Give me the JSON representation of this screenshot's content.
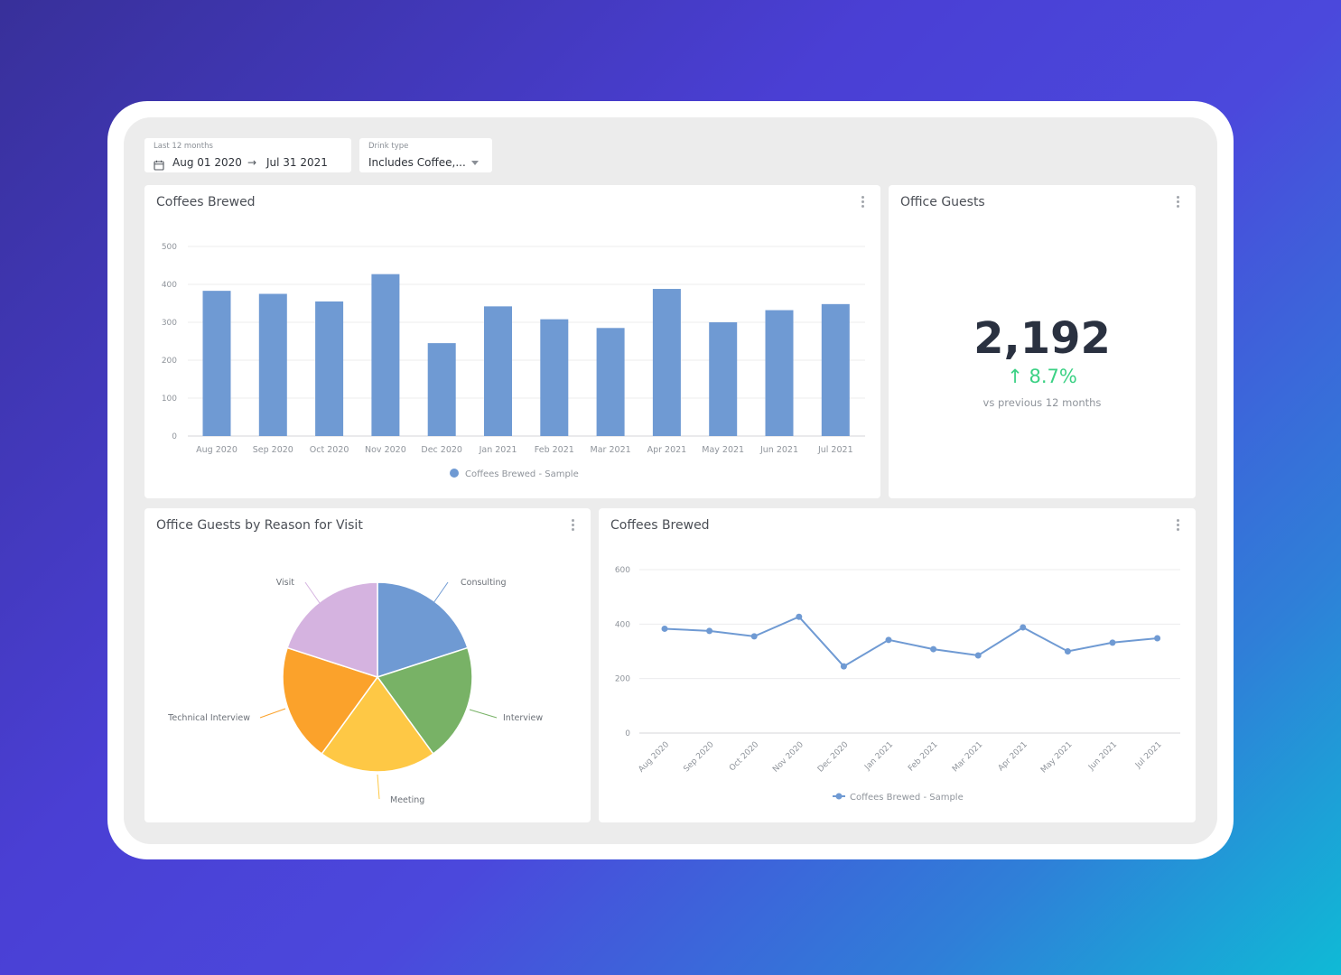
{
  "filters": {
    "date_range": {
      "label": "Last 12 months",
      "start": "Aug 01 2020",
      "arrow": "→",
      "end": "Jul 31 2021",
      "icon": "calendar-icon"
    },
    "drink_type": {
      "label": "Drink type",
      "value": "Includes Coffee,...",
      "icon": "caret-down-icon"
    }
  },
  "panels": {
    "bar": {
      "title": "Coffees Brewed",
      "menu_icon": "more-vertical-icon"
    },
    "kpi": {
      "title": "Office Guests",
      "value": "2,192",
      "change": "↑ 8.7%",
      "change_color": "#3bd184",
      "caption": "vs previous 12 months",
      "menu_icon": "more-vertical-icon"
    },
    "pie": {
      "title": "Office Guests by Reason for Visit",
      "menu_icon": "more-vertical-icon"
    },
    "line": {
      "title": "Coffees Brewed",
      "menu_icon": "more-vertical-icon"
    }
  },
  "chart_data": [
    {
      "type": "bar",
      "categories": [
        "Aug 2020",
        "Sep 2020",
        "Oct 2020",
        "Nov 2020",
        "Dec 2020",
        "Jan 2021",
        "Feb 2021",
        "Mar 2021",
        "Apr 2021",
        "May 2021",
        "Jun 2021",
        "Jul 2021"
      ],
      "series": [
        {
          "name": "Coffees Brewed - Sample",
          "values": [
            383,
            375,
            355,
            427,
            245,
            342,
            308,
            285,
            388,
            300,
            332,
            348
          ],
          "color": "#6f9ad3"
        }
      ],
      "yticks": [
        0,
        100,
        200,
        300,
        400,
        500
      ],
      "ylim": [
        0,
        500
      ],
      "grid": true,
      "legend": "bottom"
    },
    {
      "type": "pie",
      "slices": [
        {
          "label": "Consulting",
          "value": 20,
          "color": "#6f9ad3"
        },
        {
          "label": "Interview",
          "value": 20,
          "color": "#78b266"
        },
        {
          "label": "Meeting",
          "value": 20,
          "color": "#fec845"
        },
        {
          "label": "Technical Interview",
          "value": 20,
          "color": "#fba22b"
        },
        {
          "label": "Visit",
          "value": 20,
          "color": "#d5b3e0"
        }
      ]
    },
    {
      "type": "line",
      "categories": [
        "Aug 2020",
        "Sep 2020",
        "Oct 2020",
        "Nov 2020",
        "Dec 2020",
        "Jan 2021",
        "Feb 2021",
        "Mar 2021",
        "Apr 2021",
        "May 2021",
        "Jun 2021",
        "Jul 2021"
      ],
      "series": [
        {
          "name": "Coffees Brewed - Sample",
          "values": [
            383,
            375,
            355,
            427,
            245,
            342,
            308,
            285,
            388,
            300,
            332,
            348
          ],
          "color": "#6f9ad3"
        }
      ],
      "yticks": [
        0,
        200,
        400,
        600
      ],
      "ylim": [
        0,
        600
      ],
      "grid": true,
      "legend": "bottom"
    }
  ]
}
